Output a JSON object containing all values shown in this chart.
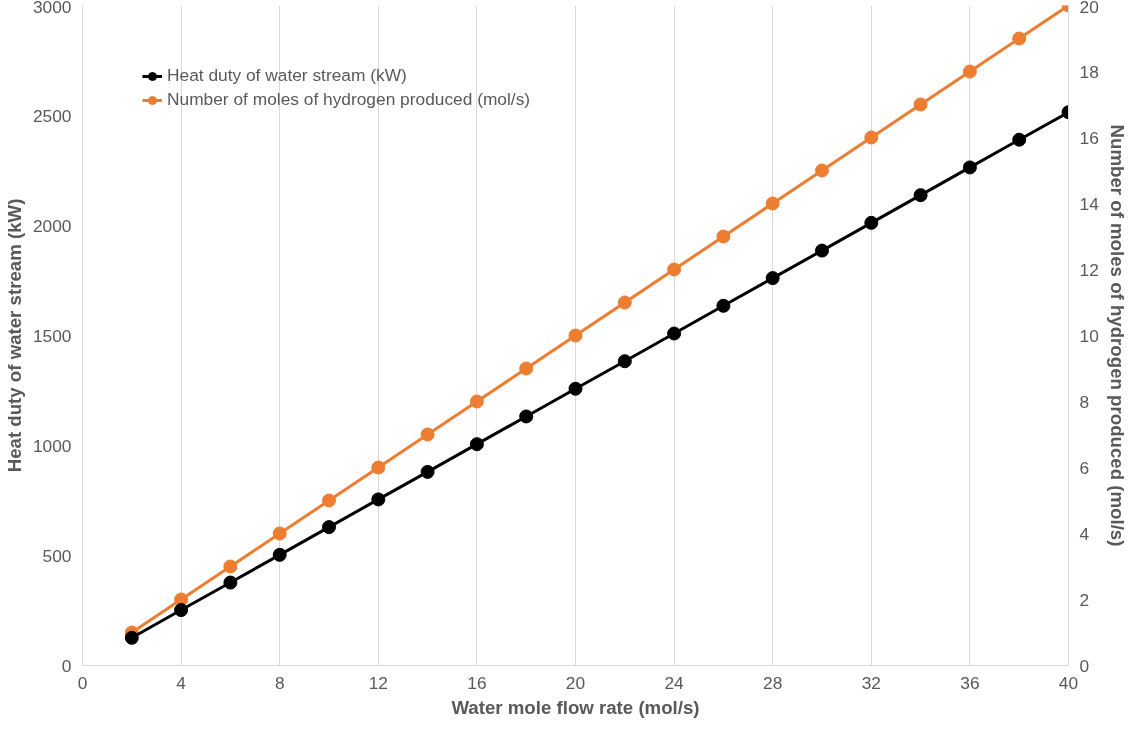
{
  "chart_data": {
    "type": "line",
    "xlabel": "Water mole flow rate (mol/s)",
    "ylabel": "Heat duty of water stream (kW)",
    "y2label": "Number of moles of hydrogen produced (mol/s)",
    "x": [
      2,
      4,
      6,
      8,
      10,
      12,
      14,
      16,
      18,
      20,
      22,
      24,
      26,
      28,
      30,
      32,
      34,
      36,
      38,
      40
    ],
    "series": [
      {
        "name": "Heat duty of water stream (kW)",
        "color": "#000000",
        "values": [
          126,
          252,
          377,
          503,
          629,
          755,
          880,
          1006,
          1132,
          1258,
          1383,
          1509,
          1635,
          1761,
          1886,
          2012,
          2138,
          2264,
          2390,
          2515
        ]
      },
      {
        "name": "Number of moles of hydrogen produced (mol/s)",
        "color": "#ed7d31",
        "axis": "y2",
        "values": [
          1,
          2,
          3,
          4,
          5,
          6,
          7,
          8,
          9,
          10,
          11,
          12,
          13,
          14,
          15,
          16,
          17,
          18,
          19,
          20
        ]
      }
    ],
    "xlim": [
      0,
      40
    ],
    "xticks": [
      0,
      4,
      8,
      12,
      16,
      20,
      24,
      28,
      32,
      36,
      40
    ],
    "ylim": [
      0,
      3000
    ],
    "yticks": [
      0,
      500,
      1000,
      1500,
      2000,
      2500,
      3000
    ],
    "y2lim": [
      0,
      20
    ],
    "y2ticks": [
      0,
      2,
      4,
      6,
      8,
      10,
      12,
      14,
      16,
      18,
      20
    ],
    "grid": "x",
    "legend": "top left",
    "marker": "circle",
    "line_style": "solid"
  }
}
